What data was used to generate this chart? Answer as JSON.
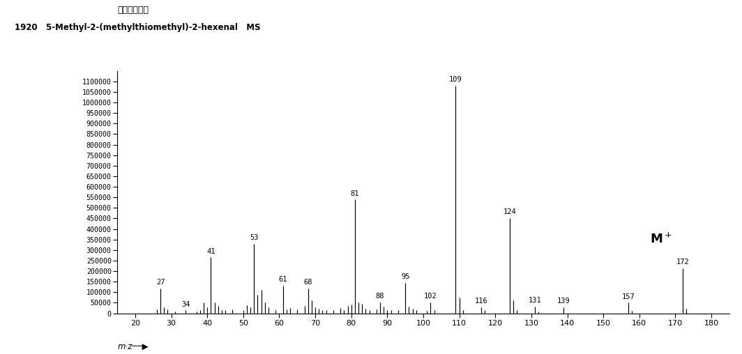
{
  "title_line1": "アバンダンス",
  "title_line2": "1920   5-Methyl-2-(methylthiomethyl)-2-hexenal   MS",
  "xlim": [
    15,
    185
  ],
  "ylim": [
    0,
    1150000
  ],
  "xticks": [
    20,
    30,
    40,
    50,
    60,
    70,
    80,
    90,
    100,
    110,
    120,
    130,
    140,
    150,
    160,
    170,
    180
  ],
  "ytick_values": [
    0,
    50000,
    100000,
    150000,
    200000,
    250000,
    300000,
    350000,
    400000,
    450000,
    500000,
    550000,
    600000,
    650000,
    700000,
    750000,
    800000,
    850000,
    900000,
    950000,
    1000000,
    1050000,
    1100000
  ],
  "peaks": [
    [
      26,
      18000
    ],
    [
      27,
      118000
    ],
    [
      28,
      28000
    ],
    [
      29,
      20000
    ],
    [
      31,
      10000
    ],
    [
      34,
      14000
    ],
    [
      37,
      7000
    ],
    [
      38,
      14000
    ],
    [
      39,
      52000
    ],
    [
      40,
      30000
    ],
    [
      41,
      265000
    ],
    [
      42,
      50000
    ],
    [
      43,
      36000
    ],
    [
      44,
      16000
    ],
    [
      45,
      14000
    ],
    [
      47,
      20000
    ],
    [
      50,
      16000
    ],
    [
      51,
      38000
    ],
    [
      52,
      30000
    ],
    [
      53,
      330000
    ],
    [
      54,
      88000
    ],
    [
      55,
      112000
    ],
    [
      56,
      50000
    ],
    [
      57,
      30000
    ],
    [
      59,
      16000
    ],
    [
      61,
      132000
    ],
    [
      62,
      20000
    ],
    [
      63,
      26000
    ],
    [
      65,
      20000
    ],
    [
      67,
      36000
    ],
    [
      68,
      118000
    ],
    [
      69,
      60000
    ],
    [
      70,
      30000
    ],
    [
      71,
      22000
    ],
    [
      72,
      16000
    ],
    [
      73,
      14000
    ],
    [
      75,
      14000
    ],
    [
      77,
      26000
    ],
    [
      78,
      16000
    ],
    [
      79,
      36000
    ],
    [
      80,
      40000
    ],
    [
      81,
      540000
    ],
    [
      82,
      52000
    ],
    [
      83,
      46000
    ],
    [
      84,
      22000
    ],
    [
      85,
      16000
    ],
    [
      87,
      20000
    ],
    [
      88,
      52000
    ],
    [
      89,
      32000
    ],
    [
      90,
      16000
    ],
    [
      91,
      14000
    ],
    [
      93,
      14000
    ],
    [
      95,
      145000
    ],
    [
      96,
      32000
    ],
    [
      97,
      22000
    ],
    [
      98,
      14000
    ],
    [
      101,
      12000
    ],
    [
      102,
      52000
    ],
    [
      103,
      16000
    ],
    [
      109,
      1080000
    ],
    [
      110,
      75000
    ],
    [
      111,
      16000
    ],
    [
      116,
      28000
    ],
    [
      117,
      14000
    ],
    [
      124,
      452000
    ],
    [
      125,
      60000
    ],
    [
      126,
      14000
    ],
    [
      131,
      32000
    ],
    [
      132,
      10000
    ],
    [
      139,
      28000
    ],
    [
      157,
      50000
    ],
    [
      158,
      12000
    ],
    [
      172,
      215000
    ],
    [
      173,
      22000
    ]
  ],
  "labeled_peaks": {
    "27": 118000,
    "34": 14000,
    "41": 265000,
    "53": 330000,
    "61": 132000,
    "68": 118000,
    "81": 540000,
    "88": 52000,
    "95": 145000,
    "102": 52000,
    "109": 1080000,
    "116": 28000,
    "124": 452000,
    "131": 32000,
    "139": 28000,
    "157": 50000,
    "172": 215000
  },
  "mplus_x": 166,
  "mplus_y": 320000,
  "bar_color": "#000000",
  "background_color": "#ffffff"
}
